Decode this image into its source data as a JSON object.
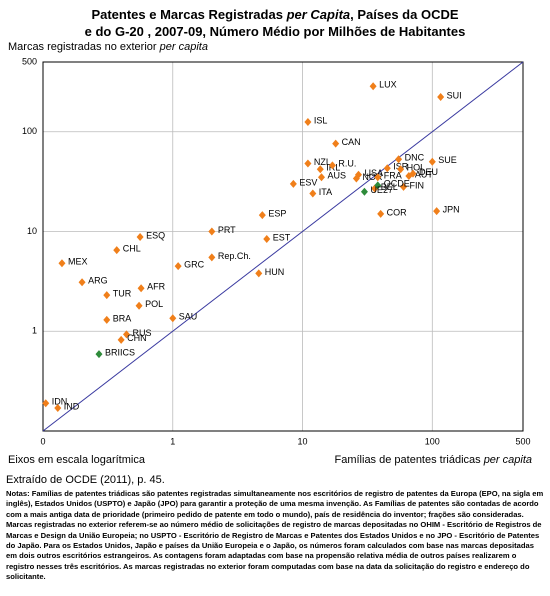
{
  "chart_data": {
    "type": "scatter",
    "title": {
      "line1": [
        "Patentes e Marcas Registradas ",
        "per Capita",
        ", Países da OCDE"
      ],
      "line2": "e do G-20 , 2007-09, Número Médio por Milhões de Habitantes"
    },
    "ylabel": [
      "Marcas registradas no exterior ",
      "per capita"
    ],
    "xlabel": [
      "Famílias de patentes triádicas ",
      "per capita"
    ],
    "axis_note": "Eixos em escala logarítmica",
    "log_scale": true,
    "grid": true,
    "xlim": [
      0.1,
      500
    ],
    "ylim": [
      0.1,
      500
    ],
    "xticks": [
      {
        "value": 0.1,
        "label": "0"
      },
      1,
      10,
      100,
      500
    ],
    "yticks": [
      {
        "value": 0.1,
        "label": "0"
      },
      1,
      10,
      100,
      500
    ],
    "series": [
      {
        "color": "#f07f1a",
        "labels": [
          "LUX",
          "SUI",
          "ISL",
          "CAN",
          "IRL",
          "NZL",
          "R.U.",
          "DNC",
          "ISR",
          "USA",
          "HOL",
          "SUE",
          "DEU",
          "AUS",
          "NOR",
          "FRA",
          "AUT",
          "ESV",
          "ITA",
          "BEL",
          "FIN",
          "JPN",
          "COR",
          "ESP",
          "PRT",
          "EST",
          "Rep.Ch.",
          "GRC",
          "HUN",
          "ESQ",
          "CHL",
          "MEX",
          "ARG",
          "AFR",
          "TUR",
          "POL",
          "BRA",
          "SAU",
          "RUS",
          "CHN",
          "IDN",
          "IND"
        ],
        "x": [
          35,
          116,
          11,
          18,
          13.7,
          11,
          17,
          55,
          45,
          27,
          57,
          100,
          71,
          14,
          26,
          38,
          66,
          8.5,
          12,
          36,
          60,
          108,
          40,
          4.9,
          2,
          5.3,
          2,
          1.1,
          4.6,
          0.56,
          0.37,
          0.14,
          0.2,
          0.57,
          0.31,
          0.55,
          0.31,
          1,
          0.44,
          0.4,
          0.105,
          0.13
        ],
        "y": [
          286,
          223,
          125,
          76,
          42,
          48,
          46,
          53,
          43,
          37,
          42,
          50,
          38,
          35,
          34,
          35,
          36,
          30,
          24,
          27,
          28,
          16,
          15,
          14.6,
          10,
          8.4,
          5.5,
          4.5,
          3.8,
          8.8,
          6.5,
          4.8,
          3.1,
          2.7,
          2.3,
          1.8,
          1.3,
          1.35,
          0.93,
          0.82,
          0.19,
          0.17
        ]
      },
      {
        "color": "#2e8b3a",
        "labels": [
          "OCDE",
          "UE27",
          "BRIICS"
        ],
        "x": [
          38,
          30,
          0.27
        ],
        "y": [
          29,
          25,
          0.59
        ]
      }
    ],
    "source": "Extraído de OCDE (2011), p. 45.",
    "notes": "Notas: Famílias de patentes triádicas são patentes registradas simultaneamente nos escritórios de registro de patentes da Europa (EPO, na sigla em inglês), Estados Unidos (USPTO) e Japão (JPO) para garantir a proteção de uma mesma invenção. As Famílias de patentes são contadas de acordo com a mais antiga data de prioridade (primeiro pedido de patente em todo o mundo), país de residência do inventor; frações são consideradas. Marcas registradas no exterior referem-se ao número médio de solicitações de registro de marcas depositadas no OHIM - Escritório de Registros de Marcas e Design da União Europeia; no USPTO - Escritório de Registro de Marcas e Patentes dos Estados Unidos e no JPO - Escritório de Patentes do Japão. Para os Estados Unidos, Japão e países da União Europeia e o Japão, os números foram calculados com base nas marcas depositadas em dois outros escritórios estrangeiros. As contagens foram adaptadas com base na propensão relativa média de outros países realizarem o registro nesses três escritórios. As marcas registradas no exterior foram computadas com base na data da solicitação do registro e endereço do solicitante."
  }
}
